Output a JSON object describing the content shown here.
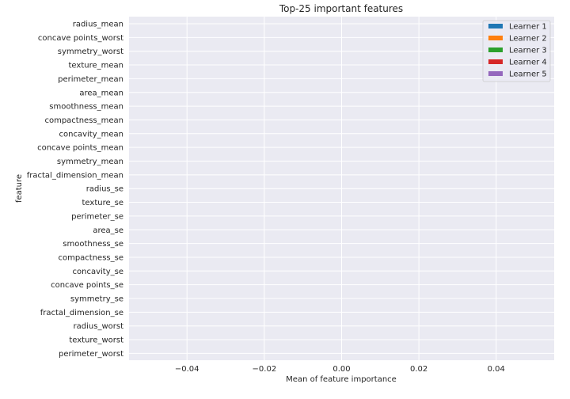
{
  "chart_data": {
    "type": "bar",
    "orientation": "horizontal",
    "title": "Top-25 important features",
    "xlabel": "Mean of feature importance",
    "ylabel": "feature",
    "xlim": [
      -0.055,
      0.055
    ],
    "xticks": [
      -0.04,
      -0.02,
      0.0,
      0.02,
      0.04
    ],
    "xtick_labels": [
      "−0.04",
      "−0.02",
      "0.00",
      "0.02",
      "0.04"
    ],
    "grid": true,
    "legend_position": "top-right",
    "categories": [
      "radius_mean",
      "concave points_worst",
      "symmetry_worst",
      "texture_mean",
      "perimeter_mean",
      "area_mean",
      "smoothness_mean",
      "compactness_mean",
      "concavity_mean",
      "concave points_mean",
      "symmetry_mean",
      "fractal_dimension_mean",
      "radius_se",
      "texture_se",
      "perimeter_se",
      "area_se",
      "smoothness_se",
      "compactness_se",
      "concavity_se",
      "concave points_se",
      "symmetry_se",
      "fractal_dimension_se",
      "radius_worst",
      "texture_worst",
      "perimeter_worst"
    ],
    "series": [
      {
        "name": "Learner 1",
        "color": "#1f77b4",
        "values": [
          0,
          0,
          0,
          0,
          0,
          0,
          0,
          0,
          0,
          0,
          0,
          0,
          0,
          0,
          0,
          0,
          0,
          0,
          0,
          0,
          0,
          0,
          0,
          0,
          0
        ]
      },
      {
        "name": "Learner 2",
        "color": "#ff7f0e",
        "values": [
          0,
          0,
          0,
          0,
          0,
          0,
          0,
          0,
          0,
          0,
          0,
          0,
          0,
          0,
          0,
          0,
          0,
          0,
          0,
          0,
          0,
          0,
          0,
          0,
          0
        ]
      },
      {
        "name": "Learner 3",
        "color": "#2ca02c",
        "values": [
          0,
          0,
          0,
          0,
          0,
          0,
          0,
          0,
          0,
          0,
          0,
          0,
          0,
          0,
          0,
          0,
          0,
          0,
          0,
          0,
          0,
          0,
          0,
          0,
          0
        ]
      },
      {
        "name": "Learner 4",
        "color": "#d62728",
        "values": [
          0,
          0,
          0,
          0,
          0,
          0,
          0,
          0,
          0,
          0,
          0,
          0,
          0,
          0,
          0,
          0,
          0,
          0,
          0,
          0,
          0,
          0,
          0,
          0,
          0
        ]
      },
      {
        "name": "Learner 5",
        "color": "#9467bd",
        "values": [
          0,
          0,
          0,
          0,
          0,
          0,
          0,
          0,
          0,
          0,
          0,
          0,
          0,
          0,
          0,
          0,
          0,
          0,
          0,
          0,
          0,
          0,
          0,
          0,
          0
        ]
      }
    ]
  }
}
